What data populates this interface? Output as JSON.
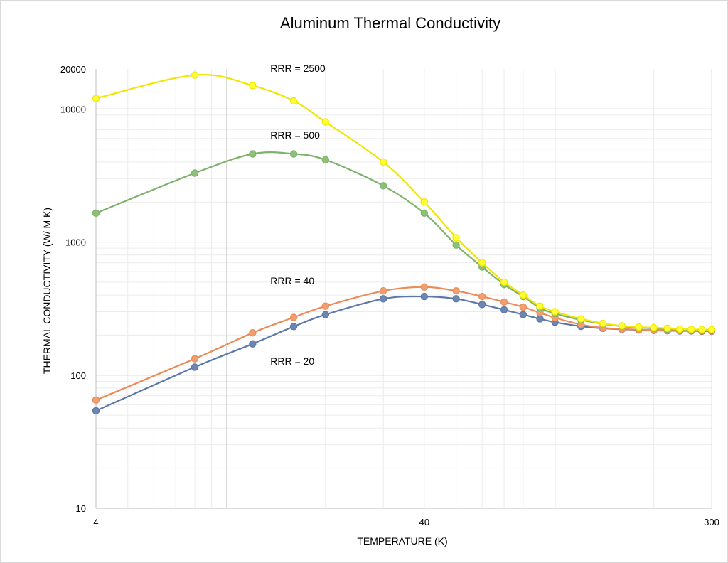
{
  "chart_data": {
    "type": "line",
    "title": "Aluminum Thermal Conductivity",
    "xlabel": "TEMPERATURE (K)",
    "ylabel": "THERMAL CONDUCTIVITY (W/ M K)",
    "x_scale": "log",
    "y_scale": "log",
    "xlim": [
      4,
      300
    ],
    "ylim": [
      10,
      20000
    ],
    "x_ticks": [
      4,
      40,
      300
    ],
    "y_ticks": [
      10,
      100,
      1000,
      10000,
      20000
    ],
    "grid": true,
    "series": [
      {
        "name": "RRR = 2500",
        "color": "#ffff33",
        "stroke": "#f2e600",
        "x": [
          4,
          8,
          12,
          16,
          20,
          30,
          40,
          50,
          60,
          70,
          80,
          90,
          100,
          120,
          140,
          160,
          180,
          200,
          220,
          240,
          260,
          280,
          300
        ],
        "y": [
          12000,
          18000,
          15000,
          11500,
          8000,
          4000,
          2000,
          1080,
          700,
          500,
          400,
          330,
          300,
          265,
          245,
          235,
          230,
          228,
          225,
          222,
          221,
          220,
          220
        ]
      },
      {
        "name": "RRR = 500",
        "color": "#8dc17a",
        "stroke": "#7fb26c",
        "x": [
          4,
          8,
          12,
          16,
          20,
          30,
          40,
          50,
          60,
          70,
          80,
          90,
          100,
          120,
          140,
          160,
          180,
          200,
          220,
          240,
          260,
          280,
          300
        ],
        "y": [
          1650,
          3300,
          4600,
          4600,
          4150,
          2650,
          1650,
          950,
          650,
          480,
          390,
          320,
          290,
          260,
          243,
          233,
          228,
          225,
          222,
          220,
          219,
          218,
          218
        ]
      },
      {
        "name": "RRR = 40",
        "color": "#f0a070",
        "stroke": "#ed8a55",
        "x": [
          4,
          8,
          12,
          16,
          20,
          30,
          40,
          50,
          60,
          70,
          80,
          90,
          100,
          120,
          140,
          160,
          180,
          200,
          220,
          240,
          260,
          280,
          300
        ],
        "y": [
          65,
          133,
          208,
          272,
          330,
          430,
          460,
          430,
          390,
          355,
          325,
          295,
          270,
          240,
          227,
          222,
          220,
          218,
          217,
          216,
          216,
          215,
          215
        ]
      },
      {
        "name": "RRR = 20",
        "color": "#6e86b0",
        "stroke": "#5b78a8",
        "x": [
          4,
          8,
          12,
          16,
          20,
          30,
          40,
          50,
          60,
          70,
          80,
          90,
          100,
          120,
          140,
          160,
          180,
          200,
          220,
          240,
          260,
          280,
          300
        ],
        "y": [
          54,
          115,
          172,
          232,
          285,
          375,
          390,
          375,
          340,
          310,
          285,
          265,
          250,
          233,
          225,
          221,
          219,
          217,
          216,
          215,
          215,
          214,
          214
        ]
      }
    ],
    "annotations": [
      {
        "text": "RRR = 2500",
        "x": 14,
        "y": 19000
      },
      {
        "text": "RRR = 500",
        "x": 14,
        "y": 6000
      },
      {
        "text": "RRR = 40",
        "x": 14,
        "y": 480
      },
      {
        "text": "RRR = 20",
        "x": 14,
        "y": 120
      }
    ]
  }
}
